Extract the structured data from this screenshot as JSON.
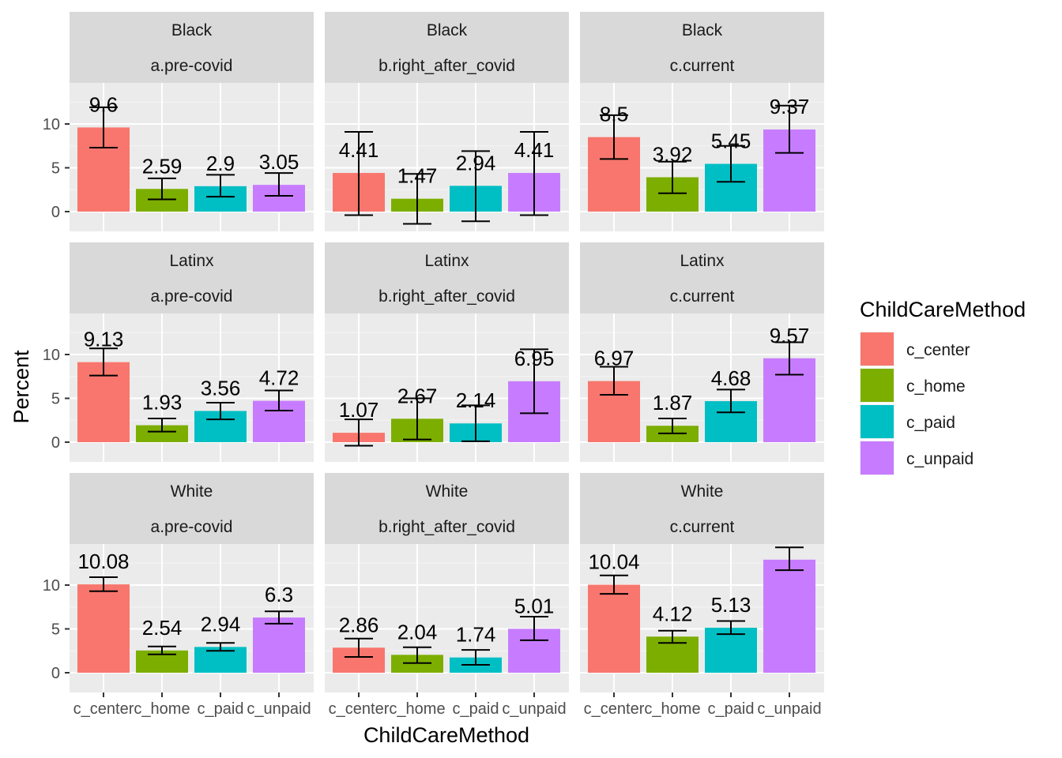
{
  "chart_data": {
    "type": "bar",
    "xlabel": "ChildCareMethod",
    "ylabel": "Percent",
    "ylim": [
      -2,
      14.5
    ],
    "yticks": [
      0,
      5,
      10
    ],
    "categories": [
      "c_center",
      "c_home",
      "c_paid",
      "c_unpaid"
    ],
    "legend": {
      "title": "ChildCareMethod",
      "position": "right",
      "items": [
        {
          "name": "c_center",
          "color": "#F8766D"
        },
        {
          "name": "c_home",
          "color": "#7CAE00"
        },
        {
          "name": "c_paid",
          "color": "#00BFC4"
        },
        {
          "name": "c_unpaid",
          "color": "#C77CFF"
        }
      ]
    },
    "facet_rows": [
      "Black",
      "Latinx",
      "White"
    ],
    "facet_cols": [
      "a.pre-covid",
      "b.right_after_covid",
      "c.current"
    ],
    "panels": [
      {
        "row": "Black",
        "col": "a.pre-covid",
        "values": [
          9.6,
          2.59,
          2.9,
          3.05
        ],
        "labels": [
          "9.6",
          "2.59",
          "2.9",
          "3.05"
        ],
        "err_low": [
          7.3,
          1.4,
          1.7,
          1.8
        ],
        "err_high": [
          11.9,
          3.8,
          4.2,
          4.4
        ]
      },
      {
        "row": "Black",
        "col": "b.right_after_covid",
        "values": [
          4.41,
          1.47,
          2.94,
          4.41
        ],
        "labels": [
          "4.41",
          "1.47",
          "2.94",
          "4.41"
        ],
        "err_low": [
          -0.4,
          -1.4,
          -1.1,
          -0.4
        ],
        "err_high": [
          9.1,
          4.3,
          6.9,
          9.1
        ]
      },
      {
        "row": "Black",
        "col": "c.current",
        "values": [
          8.5,
          3.92,
          5.45,
          9.37
        ],
        "labels": [
          "8.5",
          "3.92",
          "5.45",
          "9.37"
        ],
        "err_low": [
          6.0,
          2.1,
          3.4,
          6.7
        ],
        "err_high": [
          11.0,
          5.7,
          7.5,
          12.1
        ]
      },
      {
        "row": "Latinx",
        "col": "a.pre-covid",
        "values": [
          9.13,
          1.93,
          3.56,
          4.72
        ],
        "labels": [
          "9.13",
          "1.93",
          "3.56",
          "4.72"
        ],
        "err_low": [
          7.6,
          1.2,
          2.6,
          3.6
        ],
        "err_high": [
          10.7,
          2.7,
          4.5,
          5.9
        ]
      },
      {
        "row": "Latinx",
        "col": "b.right_after_covid",
        "values": [
          1.07,
          2.67,
          2.14,
          6.95
        ],
        "labels": [
          "1.07",
          "2.67",
          "2.14",
          "6.95"
        ],
        "err_low": [
          -0.4,
          0.3,
          0.1,
          3.3
        ],
        "err_high": [
          2.6,
          5.0,
          4.2,
          10.6
        ]
      },
      {
        "row": "Latinx",
        "col": "c.current",
        "values": [
          6.97,
          1.87,
          4.68,
          9.57
        ],
        "labels": [
          "6.97",
          "1.87",
          "4.68",
          "9.57"
        ],
        "err_low": [
          5.4,
          1.0,
          3.4,
          7.7
        ],
        "err_high": [
          8.6,
          2.7,
          6.0,
          11.4
        ]
      },
      {
        "row": "White",
        "col": "a.pre-covid",
        "values": [
          10.08,
          2.54,
          2.94,
          6.3
        ],
        "labels": [
          "10.08",
          "2.54",
          "2.94",
          "6.3"
        ],
        "err_low": [
          9.3,
          2.1,
          2.5,
          5.6
        ],
        "err_high": [
          10.9,
          3.0,
          3.4,
          7.0
        ]
      },
      {
        "row": "White",
        "col": "b.right_after_covid",
        "values": [
          2.86,
          2.04,
          1.74,
          5.01
        ],
        "labels": [
          "2.86",
          "2.04",
          "1.74",
          "5.01"
        ],
        "err_low": [
          1.8,
          1.1,
          0.9,
          3.7
        ],
        "err_high": [
          3.9,
          2.9,
          2.6,
          6.4
        ]
      },
      {
        "row": "White",
        "col": "c.current",
        "values": [
          10.04,
          4.12,
          5.13,
          12.9
        ],
        "labels": [
          "10.04",
          "4.12",
          "5.13",
          ""
        ],
        "err_low": [
          9.0,
          3.4,
          4.4,
          11.7
        ],
        "err_high": [
          11.1,
          4.8,
          5.9,
          14.3
        ]
      }
    ]
  }
}
